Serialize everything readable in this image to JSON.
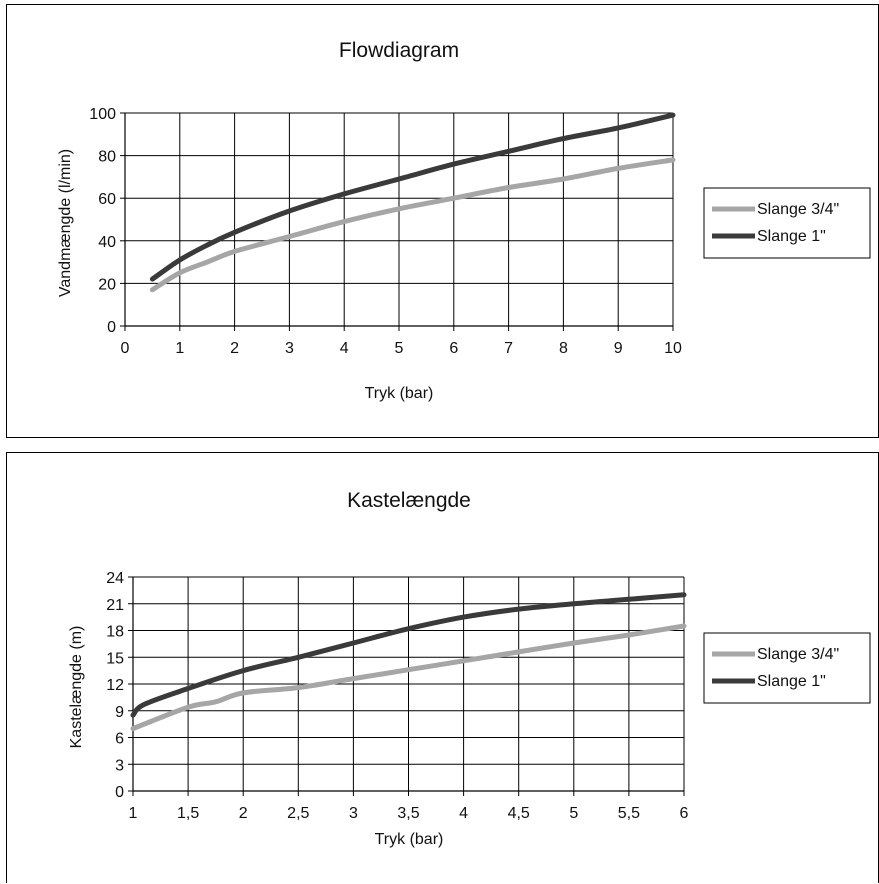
{
  "chart_data": [
    {
      "type": "line",
      "title": "Flowdiagram",
      "xlabel": "Tryk (bar)",
      "ylabel": "Vandmængde (l/min)",
      "xlim": [
        0,
        10
      ],
      "ylim": [
        0,
        100
      ],
      "xticks": [
        0,
        1,
        2,
        3,
        4,
        5,
        6,
        7,
        8,
        9,
        10
      ],
      "xtick_labels": [
        "0",
        "1",
        "2",
        "3",
        "4",
        "5",
        "6",
        "7",
        "8",
        "9",
        "10"
      ],
      "yticks": [
        0,
        20,
        40,
        60,
        80,
        100
      ],
      "ytick_labels": [
        "0",
        "20",
        "40",
        "60",
        "80",
        "100"
      ],
      "grid": true,
      "legend_position": "right",
      "series": [
        {
          "name": "Slange 3/4\"",
          "color": "#a6a6a6",
          "x": [
            0.5,
            1,
            1.5,
            2,
            3,
            4,
            5,
            6,
            7,
            8,
            9,
            10
          ],
          "y": [
            17,
            25,
            30,
            35,
            42,
            49,
            55,
            60,
            65,
            69,
            74,
            78
          ]
        },
        {
          "name": "Slange 1\"",
          "color": "#3a3a3a",
          "x": [
            0.5,
            1,
            1.5,
            2,
            3,
            4,
            5,
            6,
            7,
            8,
            9,
            10
          ],
          "y": [
            22,
            31,
            38,
            44,
            54,
            62,
            69,
            76,
            82,
            88,
            93,
            99
          ]
        }
      ]
    },
    {
      "type": "line",
      "title": "Kastelængde",
      "xlabel": "Tryk (bar)",
      "ylabel": "Kastelængde (m)",
      "xlim": [
        1,
        6
      ],
      "ylim": [
        0,
        24
      ],
      "xticks": [
        1,
        1.5,
        2,
        2.5,
        3,
        3.5,
        4,
        4.5,
        5,
        5.5,
        6
      ],
      "xtick_labels": [
        "1",
        "1,5",
        "2",
        "2,5",
        "3",
        "3,5",
        "4",
        "4,5",
        "5",
        "5,5",
        "6"
      ],
      "yticks": [
        0,
        3,
        6,
        9,
        12,
        15,
        18,
        21,
        24
      ],
      "ytick_labels": [
        "0",
        "3",
        "6",
        "9",
        "12",
        "15",
        "18",
        "21",
        "24"
      ],
      "grid": true,
      "legend_position": "right",
      "series": [
        {
          "name": "Slange 3/4\"",
          "color": "#a6a6a6",
          "x": [
            1,
            1.5,
            1.75,
            2,
            2.5,
            3,
            3.5,
            4,
            4.5,
            5,
            5.5,
            6
          ],
          "y": [
            7,
            9.4,
            10,
            11,
            11.6,
            12.6,
            13.6,
            14.6,
            15.6,
            16.6,
            17.5,
            18.5
          ]
        },
        {
          "name": "Slange 1\"",
          "color": "#3a3a3a",
          "x": [
            1,
            1.1,
            1.5,
            2,
            2.5,
            3,
            3.5,
            4,
            4.5,
            5,
            5.5,
            6
          ],
          "y": [
            8.5,
            9.7,
            11.5,
            13.5,
            15,
            16.6,
            18.2,
            19.5,
            20.4,
            21,
            21.5,
            22
          ]
        }
      ]
    }
  ]
}
